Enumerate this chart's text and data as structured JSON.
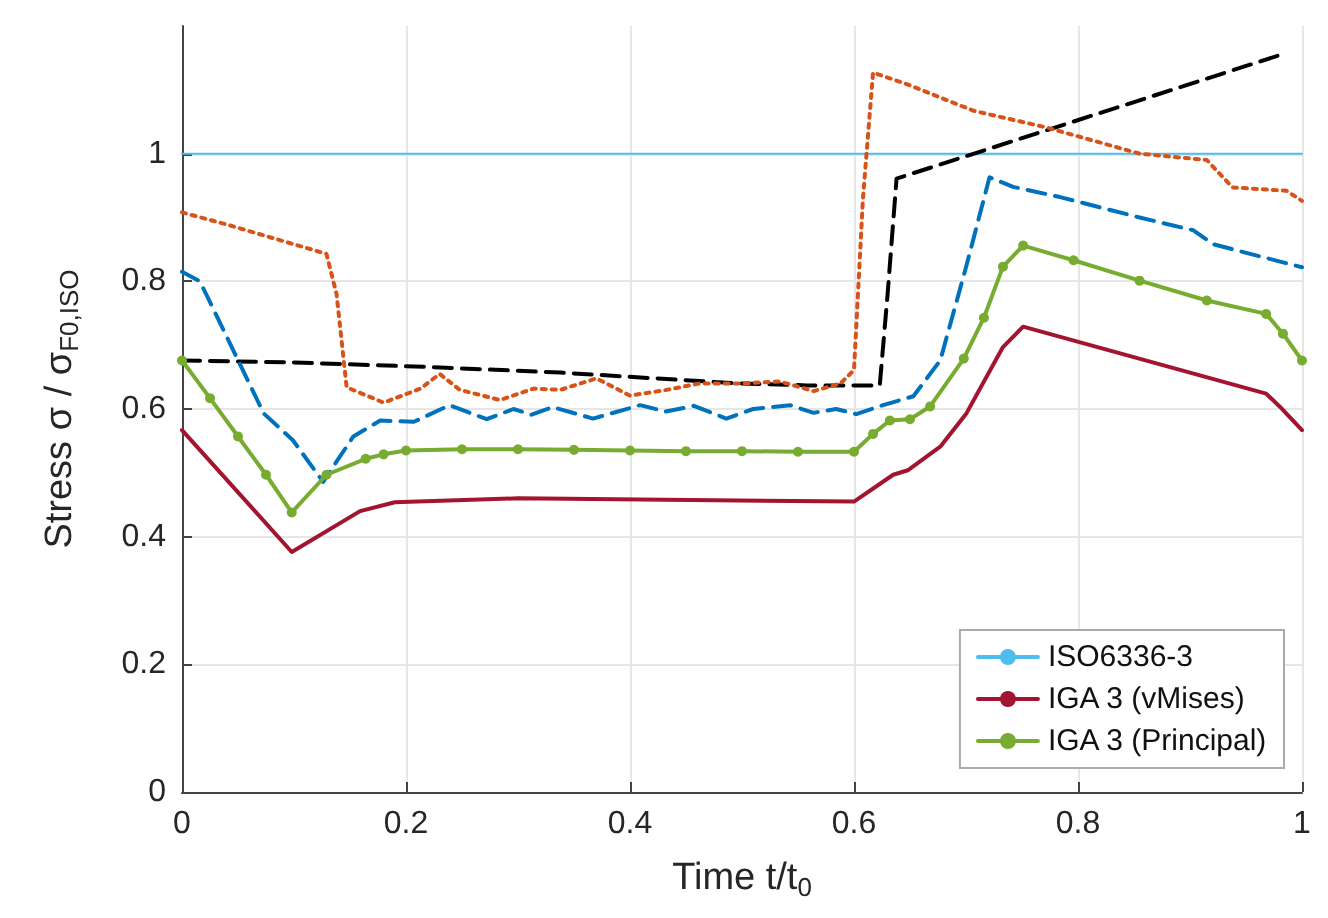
{
  "chart_data": {
    "type": "line",
    "xlabel": "Time t/t$_{0}$",
    "ylabel": "Stress σ / σ$_{F0,ISO}$",
    "xlim": [
      0,
      1
    ],
    "xticks": [
      0,
      0.2,
      0.4,
      0.6,
      0.8,
      1
    ],
    "ylim": [
      0,
      1.2
    ],
    "yticks": [
      0,
      0.2,
      0.4,
      0.6,
      0.8,
      1
    ],
    "grid": true,
    "legend": "bottom right",
    "series": [
      {
        "name": "ISO6336-3",
        "color": "#4dbeee",
        "line_style": "solid",
        "x": [
          0,
          1
        ],
        "values": [
          1,
          1
        ]
      },
      {
        "color": "#000000",
        "line_style": "dashed",
        "x": [
          0,
          0.099,
          0.218,
          0.338,
          0.498,
          0.558,
          0.623,
          0.63,
          0.638,
          0.983
        ],
        "values": [
          0.676,
          0.673,
          0.666,
          0.657,
          0.64,
          0.637,
          0.637,
          0.78,
          0.961,
          1.156
        ]
      },
      {
        "color": "#d95319",
        "line_style": "dotted",
        "x": [
          0,
          0.04,
          0.129,
          0.138,
          0.147,
          0.18,
          0.213,
          0.23,
          0.248,
          0.284,
          0.314,
          0.338,
          0.37,
          0.4,
          0.433,
          0.462,
          0.498,
          0.534,
          0.564,
          0.588,
          0.6,
          0.608,
          0.617,
          0.647,
          0.707,
          0.772,
          0.855,
          0.915,
          0.938,
          0.986,
          1
        ],
        "values": [
          0.908,
          0.889,
          0.843,
          0.78,
          0.634,
          0.61,
          0.632,
          0.655,
          0.63,
          0.614,
          0.632,
          0.63,
          0.648,
          0.621,
          0.63,
          0.64,
          0.64,
          0.643,
          0.628,
          0.64,
          0.661,
          0.93,
          1.127,
          1.109,
          1.067,
          1.041,
          1.0,
          0.99,
          0.947,
          0.942,
          0.926
        ]
      },
      {
        "color": "#0072bd",
        "line_style": "dashed",
        "x": [
          0,
          0.016,
          0.073,
          0.099,
          0.126,
          0.153,
          0.177,
          0.207,
          0.239,
          0.272,
          0.296,
          0.312,
          0.331,
          0.367,
          0.409,
          0.432,
          0.457,
          0.486,
          0.51,
          0.543,
          0.564,
          0.584,
          0.602,
          0.626,
          0.653,
          0.677,
          0.7,
          0.721,
          0.742,
          0.784,
          0.855,
          0.903,
          0.921,
          1
        ],
        "values": [
          0.815,
          0.8,
          0.593,
          0.551,
          0.486,
          0.557,
          0.582,
          0.58,
          0.606,
          0.584,
          0.6,
          0.591,
          0.603,
          0.585,
          0.606,
          0.596,
          0.605,
          0.585,
          0.6,
          0.606,
          0.594,
          0.6,
          0.592,
          0.606,
          0.62,
          0.676,
          0.822,
          0.963,
          0.948,
          0.932,
          0.9,
          0.88,
          0.858,
          0.822
        ]
      },
      {
        "name": "IGA 3 (vMises)",
        "color": "#a2142f",
        "line_style": "solid",
        "x": [
          0,
          0.098,
          0.159,
          0.19,
          0.3,
          0.6,
          0.635,
          0.648,
          0.677,
          0.7,
          0.733,
          0.751,
          0.968,
          0.98,
          1
        ],
        "values": [
          0.567,
          0.376,
          0.44,
          0.454,
          0.46,
          0.455,
          0.497,
          0.504,
          0.541,
          0.592,
          0.697,
          0.729,
          0.624,
          0.604,
          0.567
        ]
      },
      {
        "name": "IGA 3 (Principal)",
        "color": "#77ac30",
        "line_style": "solid",
        "marker": "circle",
        "x": [
          0,
          0.025,
          0.05,
          0.075,
          0.098,
          0.129,
          0.164,
          0.18,
          0.2,
          0.25,
          0.3,
          0.35,
          0.4,
          0.45,
          0.5,
          0.55,
          0.6,
          0.617,
          0.632,
          0.65,
          0.668,
          0.698,
          0.716,
          0.733,
          0.751,
          0.796,
          0.855,
          0.915,
          0.968,
          0.983,
          1
        ],
        "values": [
          0.676,
          0.617,
          0.557,
          0.497,
          0.438,
          0.497,
          0.522,
          0.529,
          0.535,
          0.537,
          0.537,
          0.536,
          0.535,
          0.534,
          0.534,
          0.533,
          0.533,
          0.561,
          0.582,
          0.584,
          0.604,
          0.679,
          0.743,
          0.823,
          0.856,
          0.833,
          0.801,
          0.77,
          0.749,
          0.718,
          0.676
        ]
      }
    ]
  }
}
